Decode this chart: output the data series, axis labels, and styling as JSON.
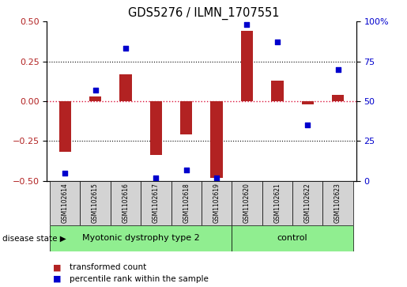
{
  "title": "GDS5276 / ILMN_1707551",
  "samples": [
    "GSM1102614",
    "GSM1102615",
    "GSM1102616",
    "GSM1102617",
    "GSM1102618",
    "GSM1102619",
    "GSM1102620",
    "GSM1102621",
    "GSM1102622",
    "GSM1102623"
  ],
  "transformed_count": [
    -0.32,
    0.03,
    0.17,
    -0.34,
    -0.21,
    -0.48,
    0.44,
    0.13,
    -0.02,
    0.04
  ],
  "percentile_rank": [
    5,
    57,
    83,
    2,
    7,
    2,
    98,
    87,
    35,
    70
  ],
  "group1_label": "Myotonic dystrophy type 2",
  "group2_label": "control",
  "group1_samples": 6,
  "group2_samples": 4,
  "group_color": "#90EE90",
  "disease_state_label": "disease state",
  "bar_color": "#B22222",
  "dot_color": "#0000CD",
  "ylim_left": [
    -0.5,
    0.5
  ],
  "ylim_right": [
    0,
    100
  ],
  "yticks_left": [
    -0.5,
    -0.25,
    0.0,
    0.25,
    0.5
  ],
  "yticks_right": [
    0,
    25,
    50,
    75,
    100
  ],
  "ytick_labels_right": [
    "0",
    "25",
    "50",
    "75",
    "100%"
  ],
  "legend_bar_label": "transformed count",
  "legend_dot_label": "percentile rank within the sample",
  "zero_line_color": "#DC143C",
  "sample_box_color": "#D3D3D3",
  "bar_width": 0.4
}
